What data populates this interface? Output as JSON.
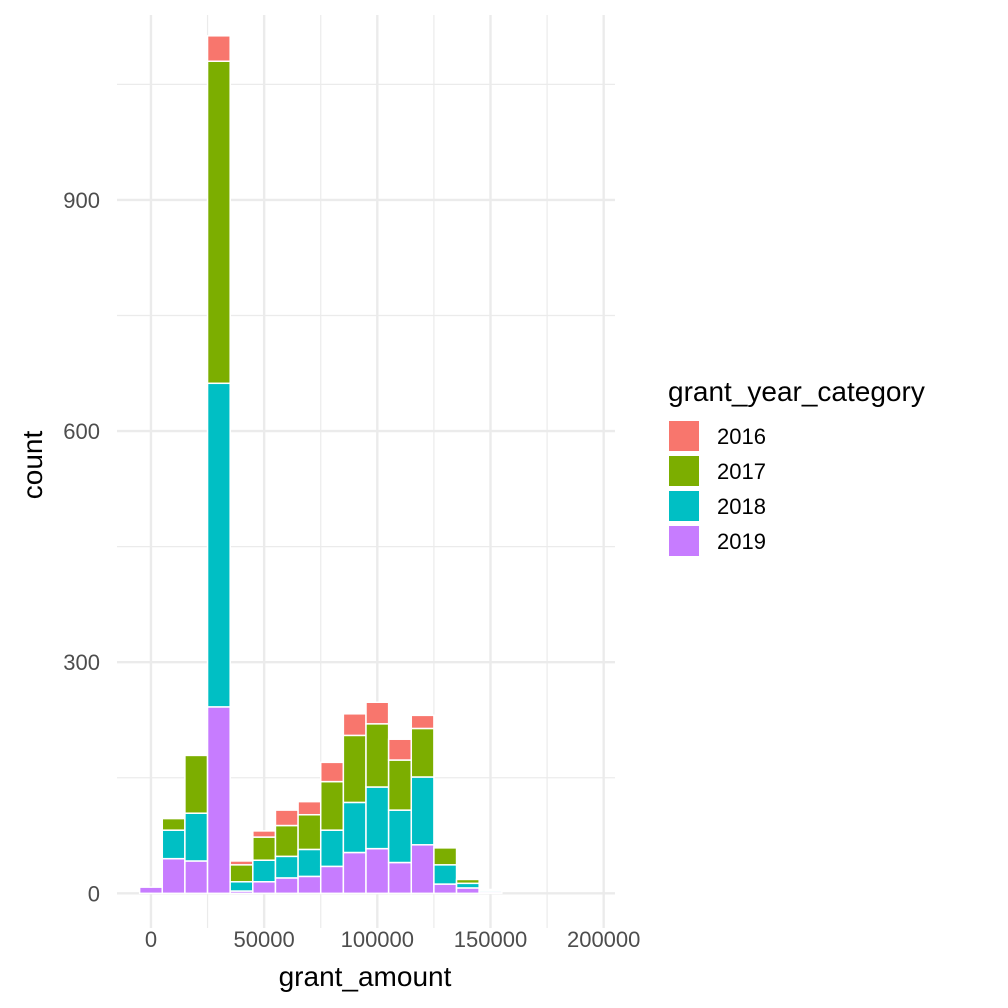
{
  "chart_data": {
    "type": "bar",
    "stacked": true,
    "xlabel": "grant_amount",
    "ylabel": "count",
    "xlim": [
      -15000,
      205000
    ],
    "ylim": [
      -45,
      1140
    ],
    "x_ticks": [
      0,
      50000,
      100000,
      150000,
      200000
    ],
    "x_tick_labels": [
      "0",
      "50000",
      "100000",
      "150000",
      "200000"
    ],
    "y_ticks": [
      0,
      300,
      600,
      900
    ],
    "y_tick_labels": [
      "0",
      "300",
      "600",
      "900"
    ],
    "grid": true,
    "legend_position": "right",
    "legend_title": "grant_year_category",
    "bin_width": 10000,
    "bin_centers": [
      0,
      10000,
      20000,
      30000,
      40000,
      50000,
      60000,
      70000,
      80000,
      90000,
      100000,
      110000,
      120000,
      130000,
      140000,
      150000,
      160000,
      170000,
      180000,
      190000
    ],
    "series": [
      {
        "name": "2019",
        "color": "#C77CFF",
        "values": [
          8,
          45,
          42,
          242,
          3,
          15,
          20,
          22,
          35,
          53,
          58,
          40,
          63,
          12,
          7,
          2,
          0,
          0,
          0,
          0
        ]
      },
      {
        "name": "2018",
        "color": "#00BFC4",
        "values": [
          0,
          37,
          62,
          420,
          12,
          28,
          28,
          35,
          47,
          65,
          80,
          68,
          88,
          25,
          6,
          2,
          0,
          0,
          0,
          0
        ]
      },
      {
        "name": "2017",
        "color": "#7CAE00",
        "values": [
          0,
          15,
          75,
          418,
          22,
          30,
          40,
          45,
          63,
          87,
          82,
          65,
          63,
          22,
          5,
          1,
          0,
          0,
          0,
          0
        ]
      },
      {
        "name": "2016",
        "color": "#F8766D",
        "values": [
          0,
          0,
          0,
          33,
          5,
          8,
          20,
          17,
          25,
          28,
          28,
          27,
          17,
          0,
          0,
          0,
          0,
          0,
          0,
          0
        ]
      }
    ],
    "legend": [
      {
        "label": "2016",
        "color": "#F8766D"
      },
      {
        "label": "2017",
        "color": "#7CAE00"
      },
      {
        "label": "2018",
        "color": "#00BFC4"
      },
      {
        "label": "2019",
        "color": "#C77CFF"
      }
    ],
    "grid_color": "#ebebeb"
  }
}
